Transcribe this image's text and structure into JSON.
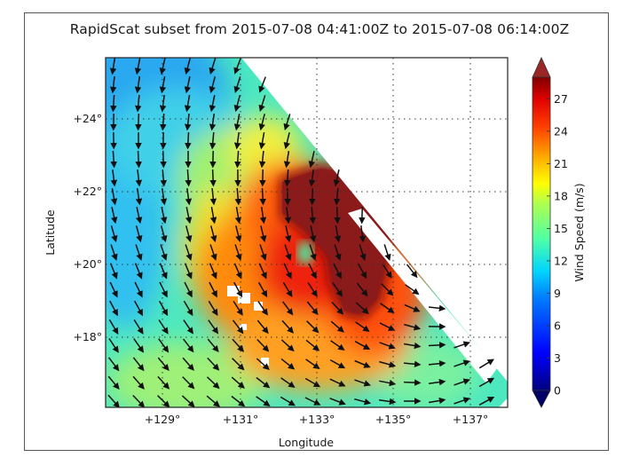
{
  "chart_data": {
    "type": "heatmap",
    "subtype": "scatterometer wind field with vector arrows",
    "title": "RapidScat subset from 2015-07-08 04:41:00Z to 2015-07-08 06:14:00Z",
    "xlabel": "Longitude",
    "ylabel": "Latitude",
    "x_ticks": [
      "+129°",
      "+131°",
      "+133°",
      "+135°",
      "+137°"
    ],
    "x_tick_values": [
      129,
      131,
      133,
      135,
      137
    ],
    "y_ticks": [
      "+18°",
      "+20°",
      "+22°",
      "+24°"
    ],
    "y_tick_values": [
      18,
      20,
      22,
      24
    ],
    "xlim": [
      127.5,
      137.9
    ],
    "ylim": [
      16.0,
      25.6
    ],
    "grid": "dotted",
    "colorbar": {
      "label": "Wind Speed (m/s)",
      "ticks": [
        "0",
        "3",
        "6",
        "9",
        "12",
        "15",
        "18",
        "21",
        "24",
        "27"
      ],
      "tick_values": [
        0,
        3,
        6,
        9,
        12,
        15,
        18,
        21,
        24,
        27
      ],
      "range": [
        0,
        29
      ],
      "extend": "both",
      "colormap": "jet"
    },
    "features": {
      "storm_eye_lon": 132.9,
      "storm_eye_lat": 20.3,
      "max_wind_region": ">29 m/s in dark-red core NE of eye",
      "swath_edge": "diagonal, upper-right no data",
      "wind_rotation": "counter-clockwise (cyclonic)"
    }
  }
}
